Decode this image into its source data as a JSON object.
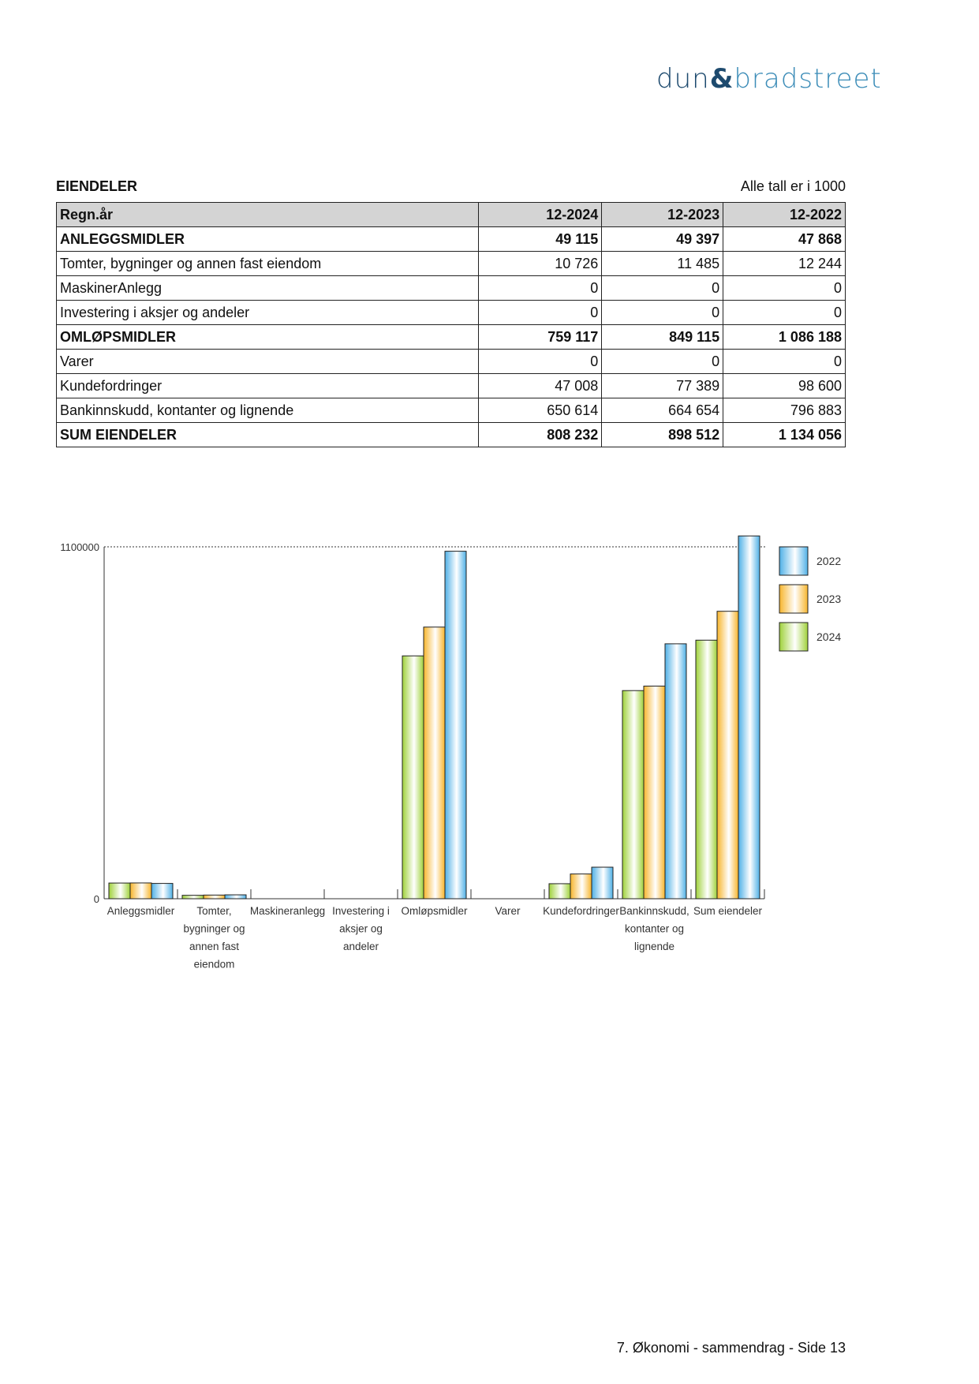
{
  "logo": {
    "part1": "dun",
    "amp": "&",
    "part2": "bradstreet"
  },
  "section_title": "EIENDELER",
  "unit_note": "Alle tall er i 1000",
  "table": {
    "headers": [
      "Regn.år",
      "12-2024",
      "12-2023",
      "12-2022"
    ],
    "rows": [
      {
        "label": "ANLEGGSMIDLER",
        "bold": true,
        "values": [
          "49 115",
          "49 397",
          "47 868"
        ]
      },
      {
        "label": "Tomter, bygninger og annen fast eiendom",
        "bold": false,
        "values": [
          "10 726",
          "11 485",
          "12 244"
        ]
      },
      {
        "label": "MaskinerAnlegg",
        "bold": false,
        "values": [
          "0",
          "0",
          "0"
        ]
      },
      {
        "label": "Investering i aksjer og andeler",
        "bold": false,
        "values": [
          "0",
          "0",
          "0"
        ]
      },
      {
        "label": "OMLØPSMIDLER",
        "bold": true,
        "values": [
          "759 117",
          "849 115",
          "1 086 188"
        ]
      },
      {
        "label": "Varer",
        "bold": false,
        "values": [
          "0",
          "0",
          "0"
        ]
      },
      {
        "label": "Kundefordringer",
        "bold": false,
        "values": [
          "47 008",
          "77 389",
          "98 600"
        ]
      },
      {
        "label": "Bankinnskudd, kontanter og lignende",
        "bold": false,
        "values": [
          "650 614",
          "664 654",
          "796 883"
        ]
      },
      {
        "label": "SUM EIENDELER",
        "bold": true,
        "values": [
          "808 232",
          "898 512",
          "1 134 056"
        ]
      }
    ]
  },
  "chart_data": {
    "type": "bar",
    "categories": [
      [
        "Anleggsmidler"
      ],
      [
        "Tomter,",
        "bygninger og",
        "annen fast",
        "eiendom"
      ],
      [
        "Maskineranlegg"
      ],
      [
        "Investering i",
        "aksjer og",
        "andeler"
      ],
      [
        "Omløpsmidler"
      ],
      [
        "Varer"
      ],
      [
        "Kundefordringer"
      ],
      [
        "Bankinnskudd,",
        "kontanter og",
        "lignende"
      ],
      [
        "Sum eiendeler"
      ]
    ],
    "series": [
      {
        "name": "2024",
        "color": "#9fd13a",
        "values": [
          49115,
          10726,
          0,
          0,
          759117,
          0,
          47008,
          650614,
          808232
        ]
      },
      {
        "name": "2023",
        "color": "#f7b52c",
        "values": [
          49397,
          11485,
          0,
          0,
          849115,
          0,
          77389,
          664654,
          898512
        ]
      },
      {
        "name": "2022",
        "color": "#4fb0e6",
        "values": [
          47868,
          12244,
          0,
          0,
          1086188,
          0,
          98600,
          796883,
          1134056
        ]
      }
    ],
    "yticks": [
      "0",
      "1100000"
    ],
    "ylim": [
      0,
      1100000
    ],
    "legend_order": [
      "2022",
      "2023",
      "2024"
    ],
    "legend_position": "right"
  },
  "footer": "7. Økonomi - sammendrag - Side 13"
}
